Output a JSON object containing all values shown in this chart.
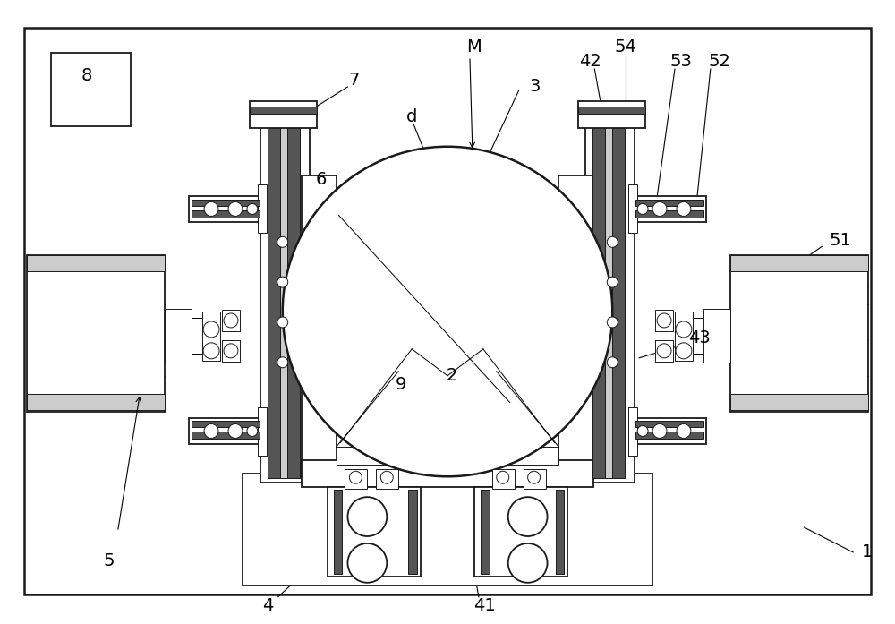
{
  "bg_color": "#ffffff",
  "line_color": "#1a1a1a",
  "gray_dark": "#555555",
  "gray_med": "#888888",
  "gray_light": "#cccccc",
  "fill_white": "#ffffff",
  "fill_light": "#f5f5f5",
  "lw_main": 1.3,
  "lw_thin": 0.7,
  "lw_thick": 1.8,
  "figsize": [
    10.0,
    6.97
  ],
  "dpi": 100
}
